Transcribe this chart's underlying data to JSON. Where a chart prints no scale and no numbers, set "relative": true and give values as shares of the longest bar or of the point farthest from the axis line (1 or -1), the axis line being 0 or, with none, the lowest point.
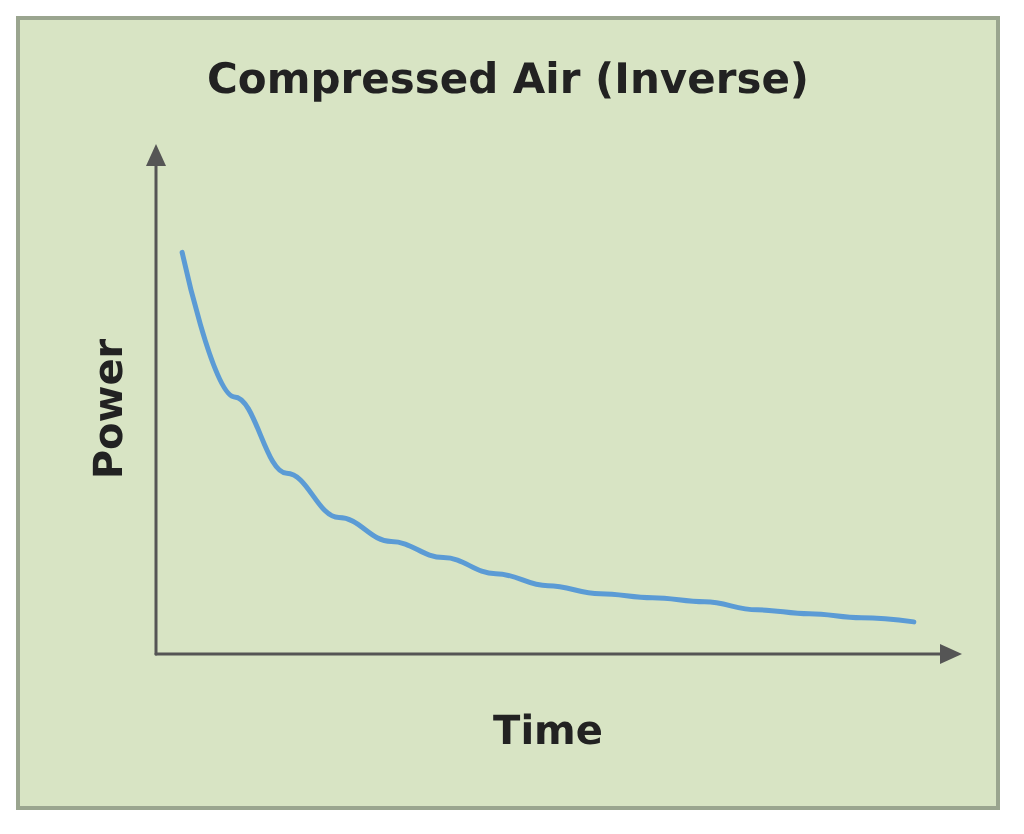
{
  "chart_data": {
    "type": "line",
    "title": "Compressed Air (Inverse)",
    "xlabel": "Time",
    "ylabel": "Power",
    "relative": true,
    "categories": [
      null,
      null,
      null,
      null,
      null,
      null,
      null,
      null,
      null,
      null,
      null,
      null,
      null,
      null,
      null
    ],
    "series": [
      {
        "color": "#5b9bd5",
        "values": [
          1,
          0.64,
          0.45,
          0.34,
          0.28,
          0.24,
          0.2,
          0.17,
          0.15,
          0.14,
          0.13,
          0.11,
          0.1,
          0.09,
          0.08
        ]
      }
    ],
    "grid": false,
    "marker": "none",
    "line_style": "solid"
  }
}
